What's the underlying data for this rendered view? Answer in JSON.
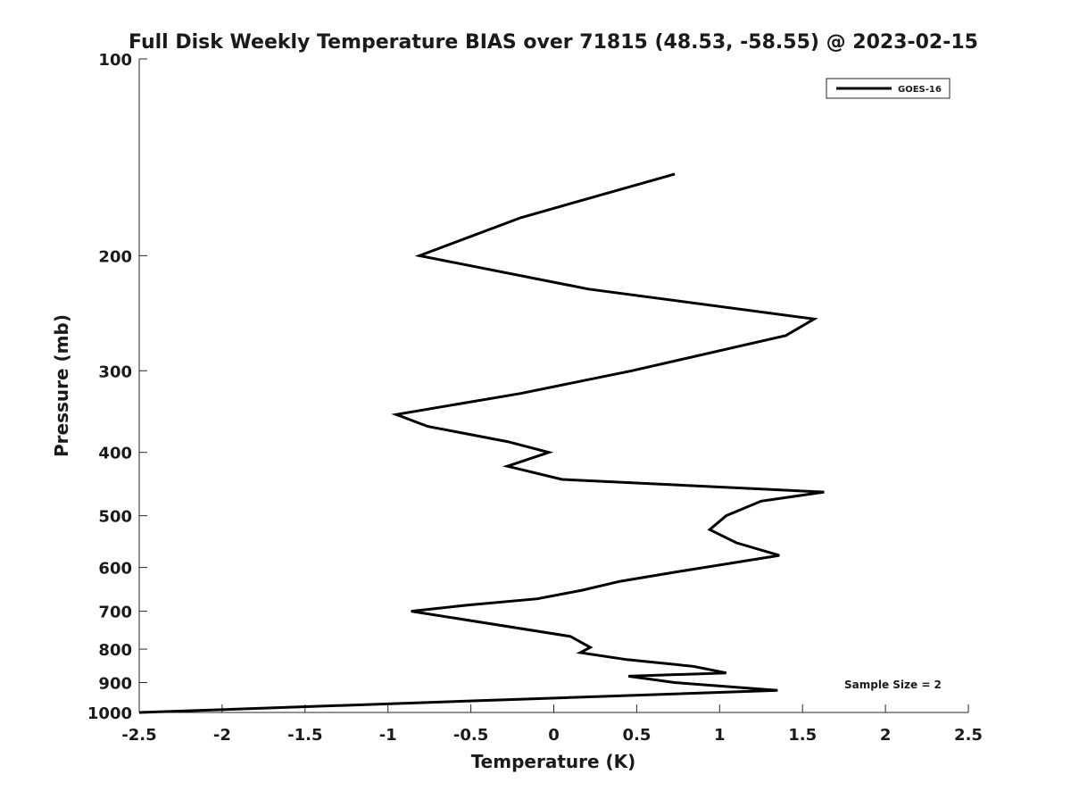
{
  "chart_data": {
    "type": "line",
    "title": "Full Disk Weekly Temperature BIAS over 71815 (48.53, -58.55) @ 2023-02-15",
    "xlabel": "Temperature (K)",
    "ylabel": "Pressure (mb)",
    "xlim": [
      -2.5,
      2.5
    ],
    "ylim": [
      100,
      1000
    ],
    "y_scale": "log",
    "y_reversed": true,
    "grid": false,
    "legend_position": "top-right",
    "x_ticks": [
      -2.5,
      -2,
      -1.5,
      -1,
      -0.5,
      0,
      0.5,
      1,
      1.5,
      2,
      2.5
    ],
    "x_tick_labels": [
      "-2.5",
      "-2",
      "-1.5",
      "-1",
      "-0.5",
      "0",
      "0.5",
      "1",
      "1.5",
      "2",
      "2.5"
    ],
    "y_ticks": [
      100,
      200,
      300,
      400,
      500,
      600,
      700,
      800,
      900,
      1000
    ],
    "y_tick_labels": [
      "100",
      "200",
      "300",
      "400",
      "500",
      "600",
      "700",
      "800",
      "900",
      "1000"
    ],
    "series": [
      {
        "name": "GOES-16",
        "color": "#000000",
        "points": [
          {
            "x": 0.73,
            "p": 150
          },
          {
            "x": -0.2,
            "p": 175
          },
          {
            "x": -0.81,
            "p": 200
          },
          {
            "x": 0.21,
            "p": 225
          },
          {
            "x": 1.57,
            "p": 250
          },
          {
            "x": 1.4,
            "p": 265
          },
          {
            "x": 0.47,
            "p": 300
          },
          {
            "x": -0.2,
            "p": 325
          },
          {
            "x": -0.95,
            "p": 350
          },
          {
            "x": -0.76,
            "p": 365
          },
          {
            "x": -0.28,
            "p": 385
          },
          {
            "x": -0.03,
            "p": 400
          },
          {
            "x": -0.28,
            "p": 420
          },
          {
            "x": 0.05,
            "p": 440
          },
          {
            "x": 1.63,
            "p": 460
          },
          {
            "x": 1.25,
            "p": 475
          },
          {
            "x": 1.04,
            "p": 500
          },
          {
            "x": 0.94,
            "p": 525
          },
          {
            "x": 1.1,
            "p": 550
          },
          {
            "x": 1.36,
            "p": 575
          },
          {
            "x": 0.73,
            "p": 610
          },
          {
            "x": 0.4,
            "p": 630
          },
          {
            "x": 0.17,
            "p": 650
          },
          {
            "x": -0.1,
            "p": 670
          },
          {
            "x": -0.52,
            "p": 685
          },
          {
            "x": -0.86,
            "p": 700
          },
          {
            "x": 0.1,
            "p": 765
          },
          {
            "x": 0.22,
            "p": 795
          },
          {
            "x": 0.16,
            "p": 810
          },
          {
            "x": 0.44,
            "p": 830
          },
          {
            "x": 0.84,
            "p": 850
          },
          {
            "x": 1.04,
            "p": 870
          },
          {
            "x": 0.45,
            "p": 880
          },
          {
            "x": 0.73,
            "p": 900
          },
          {
            "x": 1.35,
            "p": 925
          },
          {
            "x": -2.5,
            "p": 1000
          }
        ]
      }
    ],
    "annotations": [
      {
        "text": "Sample Size = 2"
      }
    ]
  }
}
